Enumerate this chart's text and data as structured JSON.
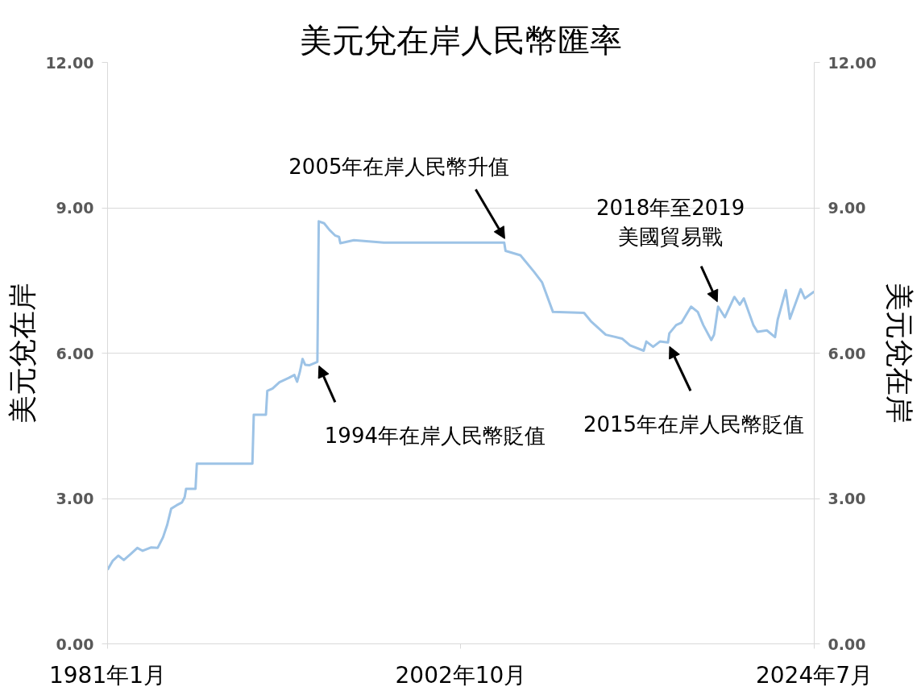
{
  "chart_data": {
    "type": "line",
    "title": "美元兌在岸人民幣匯率",
    "ylabel": "美元兌在岸",
    "y2label": "美元兌在岸",
    "x": [
      "1981-01",
      "1981-05",
      "1981-09",
      "1982-01",
      "1982-06",
      "1982-11",
      "1983-03",
      "1983-09",
      "1984-02",
      "1984-06",
      "1984-09",
      "1984-12",
      "1985-04",
      "1985-08",
      "1985-10",
      "1985-11",
      "1986-06",
      "1986-07",
      "1989-12",
      "1990-01",
      "1990-10",
      "1990-11",
      "1991-03",
      "1991-08",
      "1992-03",
      "1992-07",
      "1992-09",
      "1992-11",
      "1993-01",
      "1993-03",
      "1993-06",
      "1993-12",
      "1994-01",
      "1994-05",
      "1994-09",
      "1995-01",
      "1995-04",
      "1995-05",
      "1996-03",
      "1998-01",
      "2005-06",
      "2005-07",
      "2006-06",
      "2007-04",
      "2007-10",
      "2008-06",
      "2010-05",
      "2010-10",
      "2011-09",
      "2012-09",
      "2013-03",
      "2014-01",
      "2014-03",
      "2014-08",
      "2015-01",
      "2015-07",
      "2015-08",
      "2016-01",
      "2016-05",
      "2016-12",
      "2017-05",
      "2017-09",
      "2018-03",
      "2018-05",
      "2018-08",
      "2019-01",
      "2019-08",
      "2019-12",
      "2020-03",
      "2020-10",
      "2021-01",
      "2021-08",
      "2022-02",
      "2022-04",
      "2022-10",
      "2023-01",
      "2023-09",
      "2023-12",
      "2024-07"
    ],
    "series": [
      {
        "color": "#9dc3e6",
        "values": [
          1.53,
          1.72,
          1.82,
          1.73,
          1.85,
          1.98,
          1.92,
          1.99,
          1.98,
          2.2,
          2.45,
          2.79,
          2.86,
          2.92,
          3.03,
          3.2,
          3.2,
          3.72,
          3.72,
          4.73,
          4.73,
          5.22,
          5.27,
          5.4,
          5.49,
          5.55,
          5.41,
          5.61,
          5.88,
          5.76,
          5.75,
          5.82,
          8.72,
          8.68,
          8.54,
          8.43,
          8.4,
          8.27,
          8.33,
          8.28,
          8.28,
          8.11,
          8.02,
          7.68,
          7.46,
          6.85,
          6.83,
          6.66,
          6.38,
          6.3,
          6.16,
          6.05,
          6.24,
          6.13,
          6.24,
          6.22,
          6.41,
          6.58,
          6.63,
          6.96,
          6.85,
          6.58,
          6.27,
          6.38,
          6.96,
          6.74,
          7.16,
          7.0,
          7.13,
          6.58,
          6.44,
          6.47,
          6.33,
          6.69,
          7.3,
          6.71,
          7.32,
          7.13,
          7.27
        ]
      }
    ],
    "xlim": [
      "1981-01",
      "2024-07"
    ],
    "xticks": [
      {
        "value": "1981-01",
        "label": "1981年1月"
      },
      {
        "value": "2002-10",
        "label": "2002年10月"
      },
      {
        "value": "2024-07",
        "label": "2024年7月"
      }
    ],
    "ylim": [
      0,
      12
    ],
    "yticks": [
      {
        "value": 0,
        "label": "0.00"
      },
      {
        "value": 3,
        "label": "3.00"
      },
      {
        "value": 6,
        "label": "6.00"
      },
      {
        "value": 9,
        "label": "9.00"
      },
      {
        "value": 12,
        "label": "12.00"
      }
    ],
    "y2lim": [
      0,
      12
    ],
    "y2ticks": [
      {
        "value": 0,
        "label": "0.00"
      },
      {
        "value": 3,
        "label": "3.00"
      },
      {
        "value": 6,
        "label": "6.00"
      },
      {
        "value": 9,
        "label": "9.00"
      },
      {
        "value": 12,
        "label": "12.00"
      }
    ],
    "grid": "y",
    "annotations": [
      {
        "text": "1994年在岸人民幣貶值",
        "x": "1993-12",
        "y": 5.82
      },
      {
        "text": "2005年在岸人民幣升值",
        "x": "2005-07",
        "y": 8.28
      },
      {
        "text": "2015年在岸人民幣貶值",
        "x": "2015-07",
        "y": 6.22
      },
      {
        "text": "2018年至2019\n美國貿易戰",
        "x": "2018-08",
        "y": 6.96
      }
    ]
  }
}
